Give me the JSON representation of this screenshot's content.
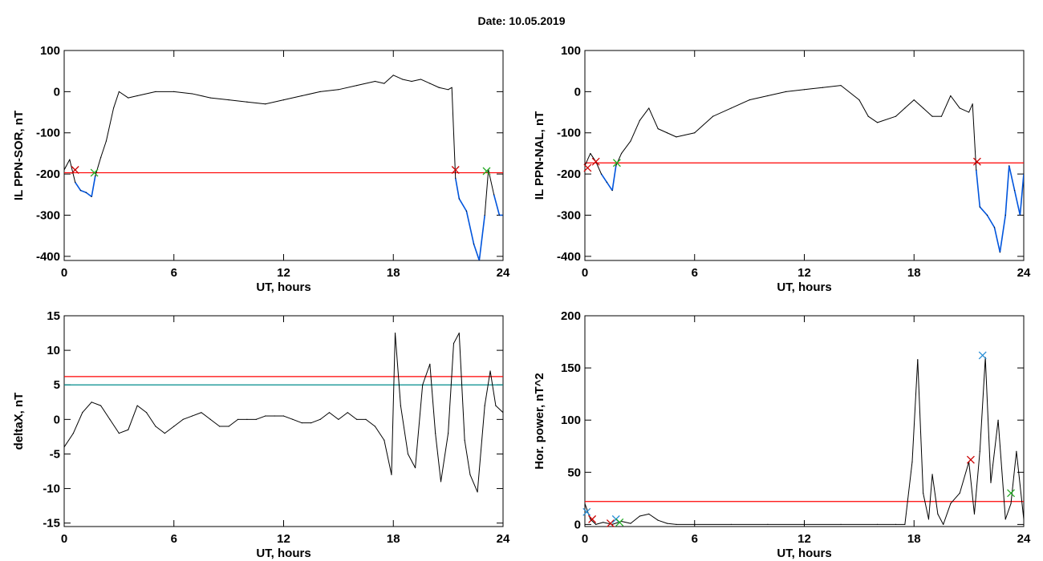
{
  "title": "Date:  10.05.2019",
  "colors": {
    "threshold_red": "#ff0000",
    "threshold_teal": "#008b8b",
    "low_segment": "#0055dd",
    "curve": "#000000",
    "marker_red": "#cc0000",
    "marker_green": "#22aa22",
    "marker_blue": "#2a8fd6"
  },
  "chart_data": [
    {
      "type": "line",
      "xlabel": "UT, hours",
      "ylabel": "IL PPN-SOR, nT",
      "xlim": [
        0,
        24
      ],
      "ylim": [
        -410,
        100
      ],
      "xticks": [
        0,
        6,
        12,
        18,
        24
      ],
      "yticks": [
        -400,
        -300,
        -200,
        -100,
        0,
        100
      ],
      "threshold": -197,
      "series": [
        {
          "x": [
            0,
            0.3,
            0.6,
            0.9,
            1.2,
            1.5,
            1.7,
            2.0,
            2.3,
            2.7,
            3.0,
            3.5,
            4,
            5,
            6,
            7,
            8,
            9,
            10,
            11,
            12,
            13,
            14,
            15,
            16,
            17,
            17.5,
            18,
            18.5,
            19,
            19.5,
            20,
            20.5,
            21,
            21.2,
            21.4,
            21.6,
            22.0,
            22.4,
            22.7,
            23.0,
            23.2,
            23.5,
            23.8,
            24
          ],
          "y": [
            -190,
            -165,
            -220,
            -240,
            -245,
            -255,
            -205,
            -160,
            -120,
            -40,
            0,
            -15,
            -10,
            0,
            0,
            -5,
            -15,
            -20,
            -25,
            -30,
            -20,
            -10,
            0,
            5,
            15,
            25,
            20,
            40,
            30,
            25,
            30,
            20,
            10,
            5,
            10,
            -210,
            -260,
            -290,
            -370,
            -410,
            -300,
            -190,
            -250,
            -300,
            -300
          ]
        }
      ],
      "markers": [
        {
          "x": 0.6,
          "y": -190,
          "color": "red"
        },
        {
          "x": 1.65,
          "y": -197,
          "color": "green"
        },
        {
          "x": 21.4,
          "y": -190,
          "color": "red"
        },
        {
          "x": 23.1,
          "y": -193,
          "color": "green"
        }
      ]
    },
    {
      "type": "line",
      "xlabel": "UT, hours",
      "ylabel": "IL PPN-NAL, nT",
      "xlim": [
        0,
        24
      ],
      "ylim": [
        -410,
        100
      ],
      "xticks": [
        0,
        6,
        12,
        18,
        24
      ],
      "yticks": [
        -400,
        -300,
        -200,
        -100,
        0,
        100
      ],
      "threshold": -173,
      "series": [
        {
          "x": [
            0,
            0.3,
            0.6,
            0.9,
            1.2,
            1.5,
            1.7,
            2.0,
            2.5,
            3.0,
            3.5,
            4.0,
            4.5,
            5.0,
            6.0,
            7.0,
            8.0,
            9.0,
            10,
            11,
            12,
            13,
            14,
            15,
            15.5,
            16,
            17,
            17.5,
            18,
            18.5,
            19,
            19.5,
            20,
            20.5,
            21,
            21.2,
            21.4,
            21.6,
            22.0,
            22.4,
            22.7,
            23.0,
            23.2,
            23.5,
            23.8,
            24
          ],
          "y": [
            -180,
            -150,
            -170,
            -200,
            -220,
            -240,
            -180,
            -150,
            -120,
            -70,
            -40,
            -90,
            -100,
            -110,
            -100,
            -60,
            -40,
            -20,
            -10,
            0,
            5,
            10,
            15,
            -20,
            -60,
            -75,
            -60,
            -40,
            -20,
            -40,
            -60,
            -60,
            -10,
            -40,
            -50,
            -30,
            -190,
            -280,
            -300,
            -330,
            -390,
            -300,
            -180,
            -240,
            -300,
            -200
          ]
        }
      ],
      "markers": [
        {
          "x": 0.15,
          "y": -185,
          "color": "red"
        },
        {
          "x": 0.6,
          "y": -170,
          "color": "red"
        },
        {
          "x": 1.75,
          "y": -173,
          "color": "green"
        },
        {
          "x": 21.45,
          "y": -170,
          "color": "red"
        }
      ]
    },
    {
      "type": "line",
      "xlabel": "UT, hours",
      "ylabel": "deltaX, nT",
      "xlim": [
        0,
        24
      ],
      "ylim": [
        -15.5,
        15
      ],
      "xticks": [
        0,
        6,
        12,
        18,
        24
      ],
      "yticks": [
        -15,
        -10,
        -5,
        0,
        5,
        10,
        15
      ],
      "threshold": 6.2,
      "threshold2": 5.0,
      "series": [
        {
          "x": [
            0,
            0.5,
            1.0,
            1.5,
            2.0,
            2.5,
            3.0,
            3.5,
            4.0,
            4.5,
            5.0,
            5.5,
            6.0,
            6.5,
            7.0,
            7.5,
            8.0,
            8.5,
            9.0,
            9.5,
            10,
            10.5,
            11,
            11.5,
            12,
            12.5,
            13,
            13.5,
            14,
            14.5,
            15,
            15.5,
            16,
            16.5,
            17,
            17.5,
            17.9,
            18.1,
            18.4,
            18.8,
            19.2,
            19.6,
            20.0,
            20.3,
            20.6,
            21.0,
            21.3,
            21.6,
            21.9,
            22.2,
            22.6,
            23.0,
            23.3,
            23.6,
            24
          ],
          "y": [
            -4,
            -2,
            1,
            2.5,
            2,
            0,
            -2,
            -1.5,
            2,
            1,
            -1,
            -2,
            -1,
            0,
            0.5,
            1,
            0,
            -1,
            -1,
            0,
            0,
            0,
            0.5,
            0.5,
            0.5,
            0,
            -0.5,
            -0.5,
            0,
            1,
            0,
            1,
            0,
            0,
            -1,
            -3,
            -8,
            12.5,
            2,
            -5,
            -7,
            5,
            8,
            -2,
            -9,
            -2,
            11,
            12.5,
            -3,
            -8,
            -10.5,
            2,
            7,
            2,
            1
          ]
        }
      ]
    },
    {
      "type": "line",
      "xlabel": "UT, hours",
      "ylabel": "Hor. power, nT^2",
      "xlim": [
        0,
        24
      ],
      "ylim": [
        -2,
        200
      ],
      "xticks": [
        0,
        6,
        12,
        18,
        24
      ],
      "yticks": [
        0,
        50,
        100,
        150,
        200
      ],
      "threshold": 22,
      "series": [
        {
          "x": [
            0,
            0.3,
            0.6,
            1.0,
            1.5,
            2.0,
            2.5,
            3.0,
            3.5,
            4.0,
            4.5,
            5.0,
            6.0,
            8.0,
            10.0,
            12.0,
            14.0,
            16.0,
            17.0,
            17.5,
            17.9,
            18.2,
            18.5,
            18.8,
            19.0,
            19.3,
            19.6,
            20.0,
            20.5,
            21.0,
            21.3,
            21.6,
            21.9,
            22.2,
            22.6,
            23.0,
            23.3,
            23.6,
            24
          ],
          "y": [
            20,
            5,
            0,
            2,
            0,
            3,
            1,
            8,
            10,
            4,
            1,
            0,
            0,
            0,
            0,
            0,
            0,
            0,
            0,
            0,
            60,
            158,
            30,
            5,
            48,
            10,
            0,
            20,
            30,
            60,
            10,
            70,
            160,
            40,
            100,
            5,
            20,
            70,
            5
          ]
        }
      ],
      "markers": [
        {
          "x": 0.1,
          "y": 12,
          "color": "blue"
        },
        {
          "x": 0.4,
          "y": 5,
          "color": "red"
        },
        {
          "x": 1.4,
          "y": 1,
          "color": "red"
        },
        {
          "x": 1.7,
          "y": 5,
          "color": "blue"
        },
        {
          "x": 1.9,
          "y": 2,
          "color": "green"
        },
        {
          "x": 21.1,
          "y": 62,
          "color": "red"
        },
        {
          "x": 21.75,
          "y": 162,
          "color": "blue"
        },
        {
          "x": 23.3,
          "y": 30,
          "color": "green"
        }
      ]
    }
  ]
}
